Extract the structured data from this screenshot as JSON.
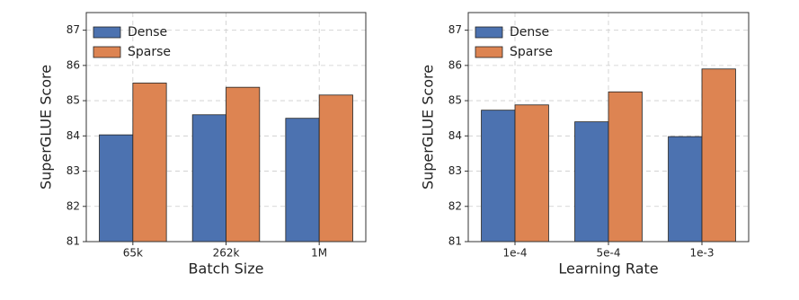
{
  "chart_data": [
    {
      "type": "bar",
      "xlabel": "Batch Size",
      "ylabel": "SuperGLUE Score",
      "categories": [
        "65k",
        "262k",
        "1M"
      ],
      "series": [
        {
          "name": "Dense",
          "color": "#4c72b0",
          "values": [
            84.03,
            84.6,
            84.5
          ]
        },
        {
          "name": "Sparse",
          "color": "#dd8452",
          "values": [
            85.5,
            85.38,
            85.16
          ]
        }
      ],
      "ylim": [
        81,
        87.5
      ],
      "yticks": [
        81,
        82,
        83,
        84,
        85,
        86,
        87
      ],
      "grid": true,
      "legend": "upper left"
    },
    {
      "type": "bar",
      "xlabel": "Learning Rate",
      "ylabel": "SuperGLUE Score",
      "categories": [
        "1e-4",
        "5e-4",
        "1e-3"
      ],
      "series": [
        {
          "name": "Dense",
          "color": "#4c72b0",
          "values": [
            84.73,
            84.4,
            83.98
          ]
        },
        {
          "name": "Sparse",
          "color": "#dd8452",
          "values": [
            84.88,
            85.25,
            85.9
          ]
        }
      ],
      "ylim": [
        81,
        87.5
      ],
      "yticks": [
        81,
        82,
        83,
        84,
        85,
        86,
        87
      ],
      "grid": true,
      "legend": "upper left"
    }
  ]
}
